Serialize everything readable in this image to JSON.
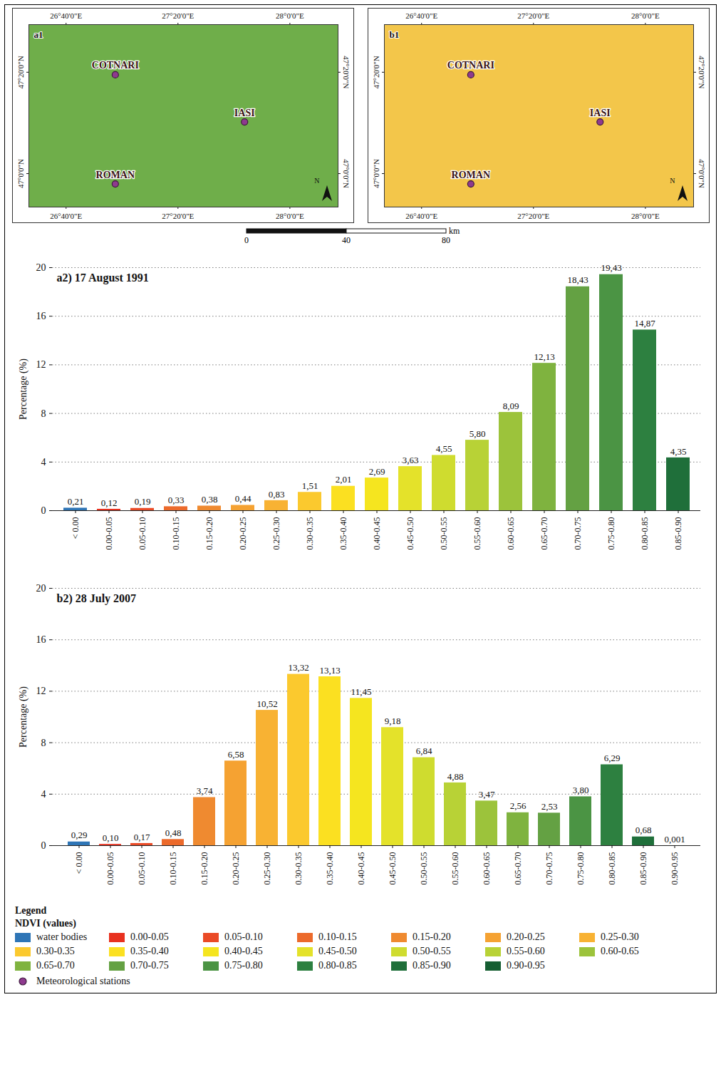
{
  "chart_data": [
    {
      "type": "map",
      "title": "a1",
      "color": "#6fae4a",
      "xlim": [
        26.445,
        28.287
      ],
      "ylim": [
        46.89,
        47.49
      ],
      "xticks": [
        {
          "value": 26.6667,
          "label": "26°40'0\"E"
        },
        {
          "value": 27.3333,
          "label": "27°20'0\"E"
        },
        {
          "value": 28.0,
          "label": "28°0'0\"E"
        }
      ],
      "yticks": [
        {
          "value": 47.0,
          "label": "47°0'0\"N"
        },
        {
          "value": 47.3333,
          "label": "47°20'0\"N"
        }
      ],
      "points": [
        {
          "name": "COTNARI",
          "lon": 26.96,
          "lat": 47.325
        },
        {
          "name": "IASI",
          "lon": 27.73,
          "lat": 47.17
        },
        {
          "name": "ROMAN",
          "lon": 26.96,
          "lat": 46.966
        }
      ],
      "north_label": "N"
    },
    {
      "type": "map",
      "title": "b1",
      "color": "#f3c64a",
      "xlim": [
        26.445,
        28.287
      ],
      "ylim": [
        46.89,
        47.49
      ],
      "xticks": [
        {
          "value": 26.6667,
          "label": "26°40'0\"E"
        },
        {
          "value": 27.3333,
          "label": "27°20'0\"E"
        },
        {
          "value": 28.0,
          "label": "28°0'0\"E"
        }
      ],
      "yticks": [
        {
          "value": 47.0,
          "label": "47°0'0\"N"
        },
        {
          "value": 47.3333,
          "label": "47°20'0\"N"
        }
      ],
      "points": [
        {
          "name": "COTNARI",
          "lon": 26.96,
          "lat": 47.325
        },
        {
          "name": "IASI",
          "lon": 27.73,
          "lat": 47.17
        },
        {
          "name": "ROMAN",
          "lon": 26.96,
          "lat": 46.966
        }
      ],
      "north_label": "N"
    },
    {
      "type": "bar",
      "title": "a2) 17 August 1991",
      "y_label": "Percentage (%)",
      "categories": [
        "< 0.00",
        "0.00-0.05",
        "0.05-0.10",
        "0.10-0.15",
        "0.15-0.20",
        "0.20-0.25",
        "0.25-0.30",
        "0.30-0.35",
        "0.35-0.40",
        "0.40-0.45",
        "0.45-0.50",
        "0.50-0.55",
        "0.55-0.60",
        "0.60-0.65",
        "0.65-0.70",
        "0.70-0.75",
        "0.75-0.80",
        "0.80-0.85",
        "0.85-0.90"
      ],
      "values": [
        0.21,
        0.12,
        0.19,
        0.33,
        0.38,
        0.44,
        0.83,
        1.51,
        2.01,
        2.69,
        3.63,
        4.55,
        5.8,
        8.09,
        12.13,
        18.43,
        19.43,
        14.87,
        4.35
      ],
      "value_labels": [
        "0,21",
        "0,12",
        "0,19",
        "0,33",
        "0,38",
        "0,44",
        "0,83",
        "1,51",
        "2,01",
        "2,69",
        "3,63",
        "4,55",
        "5,80",
        "8,09",
        "12,13",
        "18,43",
        "19,43",
        "14,87",
        "4,35"
      ],
      "colors": [
        "#2e75b6",
        "#e8311f",
        "#ea4a26",
        "#ec6a2b",
        "#ef8a30",
        "#f5a232",
        "#f8b233",
        "#fbc92e",
        "#fbe021",
        "#f5e51f",
        "#e4e22a",
        "#cfdc2f",
        "#b8d236",
        "#9cc33b",
        "#7fb33f",
        "#64a143",
        "#4b9444",
        "#2d8040",
        "#1f6f3a"
      ],
      "ylim": [
        0,
        20
      ],
      "yticks": [
        0,
        4,
        8,
        12,
        16,
        20
      ],
      "grid": true,
      "data_labels": true
    },
    {
      "type": "bar",
      "title": "b2) 28 July 2007",
      "y_label": "Percentage (%)",
      "categories": [
        "< 0.00",
        "0.00-0.05",
        "0.05-0.10",
        "0.10-0.15",
        "0.15-0.20",
        "0.20-0.25",
        "0.25-0.30",
        "0.30-0.35",
        "0.35-0.40",
        "0.40-0.45",
        "0.45-0.50",
        "0.50-0.55",
        "0.55-0.60",
        "0.60-0.65",
        "0.65-0.70",
        "0.70-0.75",
        "0.75-0.80",
        "0.80-0.85",
        "0.85-0.90",
        "0.90-0.95"
      ],
      "values": [
        0.29,
        0.1,
        0.17,
        0.48,
        3.74,
        6.58,
        10.52,
        13.32,
        13.13,
        11.45,
        9.18,
        6.84,
        4.88,
        3.47,
        2.56,
        2.53,
        3.8,
        6.29,
        0.68,
        0.001
      ],
      "value_labels": [
        "0,29",
        "0,10",
        "0,17",
        "0,48",
        "3,74",
        "6,58",
        "10,52",
        "13,32",
        "13,13",
        "11,45",
        "9,18",
        "6,84",
        "4,88",
        "3,47",
        "2,56",
        "2,53",
        "3,80",
        "6,29",
        "0,68",
        "0,001"
      ],
      "colors": [
        "#2e75b6",
        "#e8311f",
        "#ea4a26",
        "#ec6a2b",
        "#ef8a30",
        "#f5a232",
        "#f8b233",
        "#fbc92e",
        "#fbe021",
        "#f5e51f",
        "#e4e22a",
        "#cfdc2f",
        "#b8d236",
        "#9cc33b",
        "#7fb33f",
        "#64a143",
        "#4b9444",
        "#2d8040",
        "#1f6f3a",
        "#165e32"
      ],
      "ylim": [
        0,
        20
      ],
      "yticks": [
        0,
        4,
        8,
        12,
        16,
        20
      ],
      "grid": true,
      "data_labels": true
    }
  ],
  "scale_bar": {
    "ticks": [
      0,
      40,
      80
    ],
    "unit": "km"
  },
  "legend_panel": {
    "title": "Legend",
    "subtitle": "NDVI (values)",
    "entries": [
      {
        "label": "water bodies",
        "color": "#2e75b6"
      },
      {
        "label": "0.00-0.05",
        "color": "#e8311f"
      },
      {
        "label": "0.05-0.10",
        "color": "#ea4a26"
      },
      {
        "label": "0.10-0.15",
        "color": "#ec6a2b"
      },
      {
        "label": "0.15-0.20",
        "color": "#ef8a30"
      },
      {
        "label": "0.20-0.25",
        "color": "#f5a232"
      },
      {
        "label": "0.25-0.30",
        "color": "#f8b233"
      },
      {
        "label": "0.30-0.35",
        "color": "#fbc92e"
      },
      {
        "label": "0.35-0.40",
        "color": "#fbe021"
      },
      {
        "label": "0.40-0.45",
        "color": "#f5e51f"
      },
      {
        "label": "0.45-0.50",
        "color": "#e4e22a"
      },
      {
        "label": "0.50-0.55",
        "color": "#cfdc2f"
      },
      {
        "label": "0.55-0.60",
        "color": "#b8d236"
      },
      {
        "label": "0.60-0.65",
        "color": "#9cc33b"
      },
      {
        "label": "0.65-0.70",
        "color": "#7fb33f"
      },
      {
        "label": "0.70-0.75",
        "color": "#64a143"
      },
      {
        "label": "0.75-0.80",
        "color": "#4b9444"
      },
      {
        "label": "0.80-0.85",
        "color": "#2d8040"
      },
      {
        "label": "0.85-0.90",
        "color": "#1f6f3a"
      },
      {
        "label": "0.90-0.95",
        "color": "#165e32"
      }
    ],
    "station_label": "Meteorological stations",
    "station_color": "#8e3a8e"
  }
}
